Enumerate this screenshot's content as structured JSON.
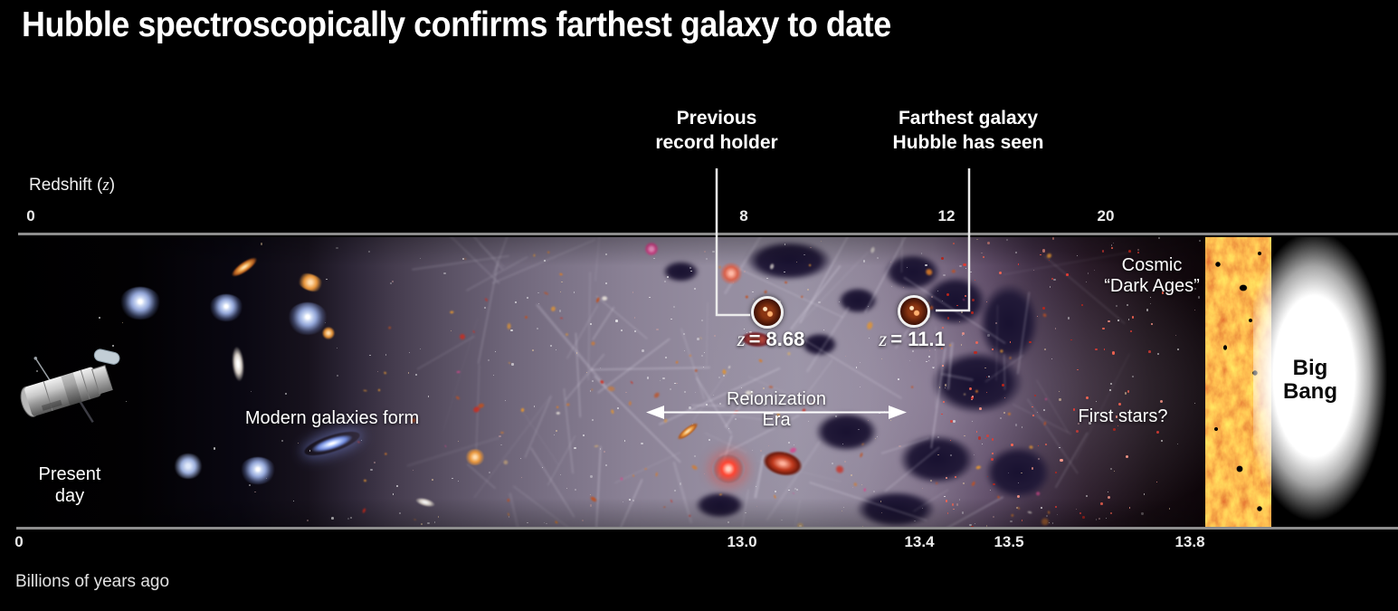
{
  "title": "Hubble spectroscopically confirms farthest galaxy to date",
  "redshift_axis": {
    "label_pre": "Redshift (",
    "z": "z",
    "label_post": ")",
    "ticks": [
      "0",
      "8",
      "12",
      "20"
    ]
  },
  "time_axis": {
    "ticks": [
      "0",
      "13.0",
      "13.4",
      "13.5",
      "13.8"
    ],
    "caption": "Billions of years ago"
  },
  "callouts": {
    "previous": {
      "label_line1": "Previous",
      "label_line2": "record holder",
      "z": "z",
      "value": "= 8.68"
    },
    "farthest": {
      "label_line1": "Farthest galaxy",
      "label_line2": "Hubble has seen",
      "z": "z",
      "value": "= 11.1"
    }
  },
  "band": {
    "present_day": {
      "line1": "Present",
      "line2": "day"
    },
    "modern_galaxies": "Modern galaxies form",
    "reionization": {
      "line1": "Reionization",
      "line2": "Era"
    },
    "first_stars": "First stars?",
    "dark_ages": {
      "line1": "Cosmic",
      "line2": "“Dark Ages”"
    },
    "big_bang": {
      "line1": "Big",
      "line2": "Bang"
    }
  },
  "icons": {
    "hubble": "hubble-telescope",
    "previous_marker": "circled-galaxy",
    "farthest_marker": "circled-galaxy"
  },
  "colors": {
    "background": "#000000",
    "axis_line": "#8d8d8d",
    "text": "#ffffff",
    "web_purple": "#9992a4",
    "cmb_orange": "#e2671d",
    "cmb_yellow": "#f6c32a",
    "first_star_red": "#e23c33"
  }
}
